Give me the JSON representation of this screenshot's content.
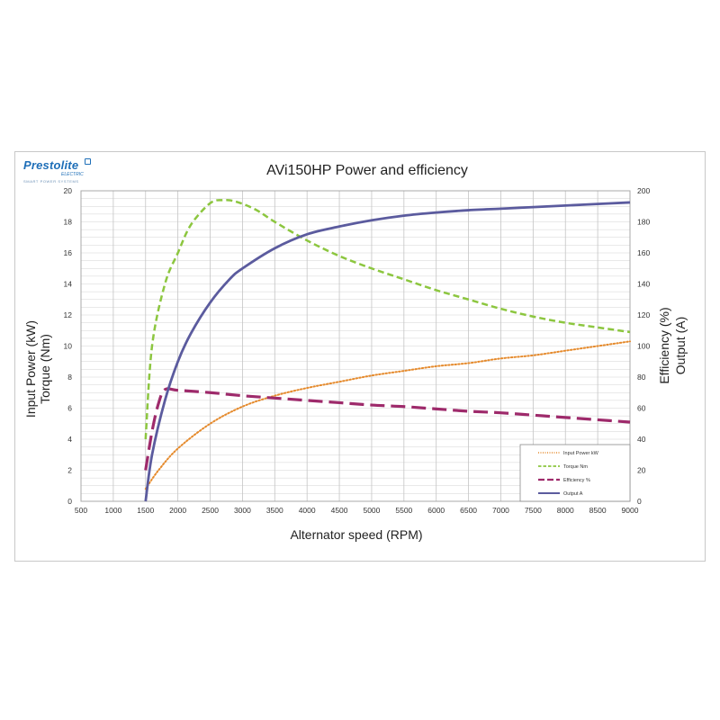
{
  "logo": {
    "brand": "Prestolite",
    "sub": "ELECTRIC",
    "tagline": "SMART POWER SYSTEMS"
  },
  "chart_data": {
    "type": "line",
    "title": "AVi150HP Power and efficiency",
    "xlabel": "Alternator speed (RPM)",
    "ylabel_left": [
      "Input Power (kW)",
      "Torque (Nm)"
    ],
    "ylabel_right": [
      "Efficiency (%)",
      "Output (A)"
    ],
    "xlim": [
      500,
      9000
    ],
    "ylim_left": [
      0,
      20
    ],
    "ylim_right": [
      0,
      200
    ],
    "x_ticks": [
      500,
      1000,
      1500,
      2000,
      2500,
      3000,
      3500,
      4000,
      4500,
      5000,
      5500,
      6000,
      6500,
      7000,
      7500,
      8000,
      8500,
      9000
    ],
    "y_left_ticks": [
      0,
      2,
      4,
      6,
      8,
      10,
      12,
      14,
      16,
      18,
      20
    ],
    "y_right_ticks": [
      0,
      20,
      40,
      60,
      80,
      100,
      120,
      140,
      160,
      180,
      200
    ],
    "grid": true,
    "legend_position": "bottom-right",
    "series": [
      {
        "name": "Input Power kW",
        "axis": "left",
        "color": "#e58a2c",
        "style": "dotted",
        "x": [
          1500,
          1700,
          2000,
          2500,
          3000,
          3500,
          4000,
          4500,
          5000,
          5500,
          6000,
          6500,
          7000,
          7500,
          8000,
          8500,
          9000
        ],
        "y": [
          0.8,
          2.0,
          3.4,
          5.0,
          6.1,
          6.8,
          7.3,
          7.7,
          8.1,
          8.4,
          8.7,
          8.9,
          9.2,
          9.4,
          9.7,
          10.0,
          10.3
        ]
      },
      {
        "name": "Torque Nm",
        "axis": "left",
        "color": "#8cc63f",
        "style": "dashed",
        "x": [
          1500,
          1600,
          1800,
          2000,
          2200,
          2500,
          2700,
          2900,
          3200,
          3500,
          4000,
          4500,
          5000,
          5500,
          6000,
          6500,
          7000,
          7500,
          8000,
          8500,
          9000
        ],
        "y": [
          4.0,
          10.0,
          14.0,
          16.0,
          17.8,
          19.2,
          19.4,
          19.3,
          18.8,
          18.0,
          16.8,
          15.8,
          15.0,
          14.3,
          13.6,
          13.0,
          12.4,
          11.9,
          11.5,
          11.2,
          10.9
        ]
      },
      {
        "name": "Efficiency %",
        "axis": "right",
        "color": "#9e2a6b",
        "style": "longdash",
        "x": [
          1500,
          1600,
          1700,
          1800,
          2000,
          2500,
          3000,
          3500,
          4000,
          4500,
          5000,
          5500,
          6000,
          6500,
          7000,
          7500,
          8000,
          8500,
          9000
        ],
        "y": [
          20,
          45,
          63,
          72,
          71.5,
          70,
          68,
          66.5,
          65,
          63.5,
          62,
          61,
          59.5,
          58,
          57,
          55.5,
          54,
          52.5,
          51
        ]
      },
      {
        "name": "Output A",
        "axis": "right",
        "color": "#5b5b9e",
        "style": "solid",
        "x": [
          1500,
          1600,
          1800,
          2000,
          2200,
          2500,
          2800,
          3000,
          3500,
          4000,
          4500,
          5000,
          5500,
          6000,
          6500,
          7000,
          7500,
          8000,
          8500,
          9000
        ],
        "y": [
          0,
          30,
          65,
          90,
          108,
          128,
          143,
          150,
          163,
          172,
          177,
          181,
          184,
          186,
          187.5,
          188.5,
          189.5,
          190.5,
          191.5,
          192.5
        ]
      }
    ]
  }
}
